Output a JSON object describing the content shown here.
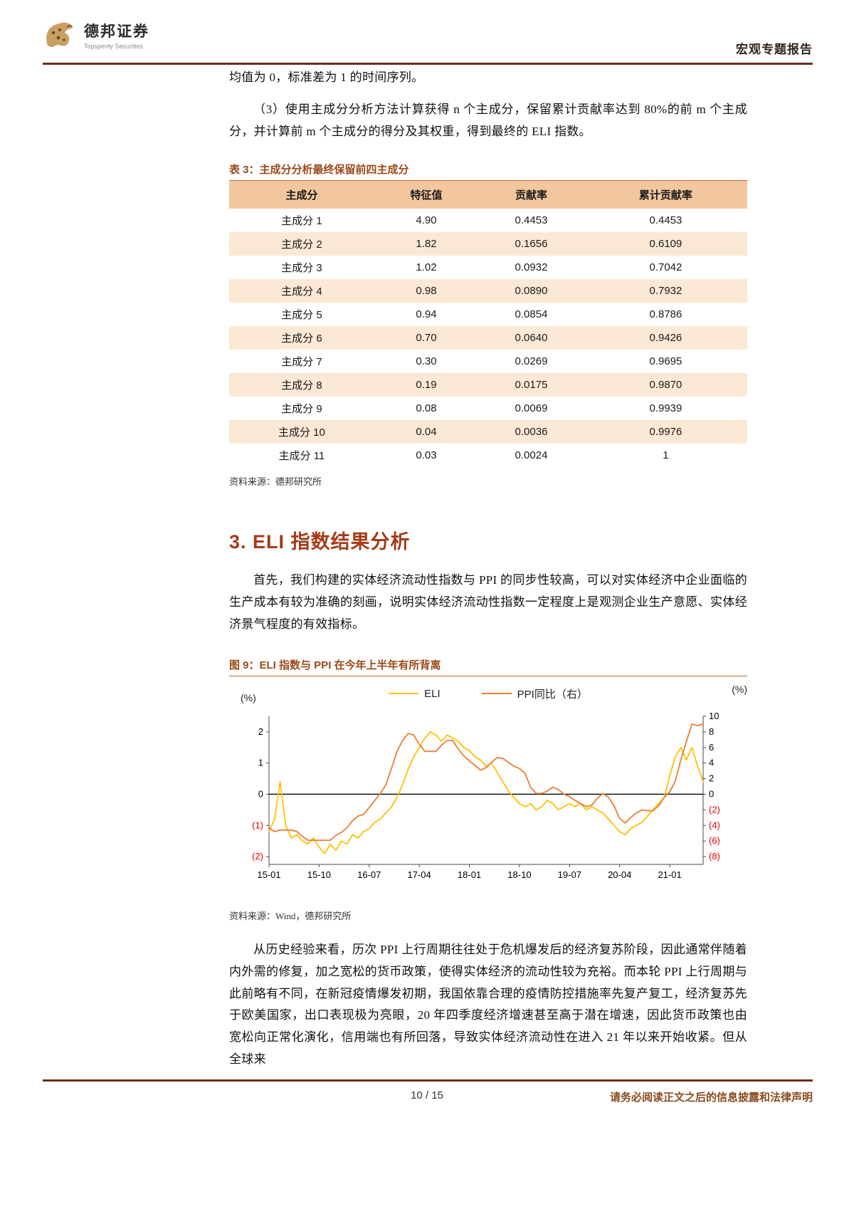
{
  "header": {
    "logo_title": "德邦证券",
    "logo_subtitle": "Topsperity Securities",
    "report_type": "宏观专题报告"
  },
  "body": {
    "para1": "均值为 0，标准差为 1 的时间序列。",
    "para2": "（3）使用主成分分析方法计算获得 n 个主成分，保留累计贡献率达到 80%的前 m 个主成分，并计算前 m 个主成分的得分及其权重，得到最终的 ELI 指数。",
    "section_heading": "3. ELI 指数结果分析",
    "para3": "首先，我们构建的实体经济流动性指数与 PPI 的同步性较高，可以对实体经济中企业面临的生产成本有较为准确的刻画，说明实体经济流动性指数一定程度上是观测企业生产意愿、实体经济景气程度的有效指标。",
    "para4": "从历史经验来看，历次 PPI 上行周期往往处于危机爆发后的经济复苏阶段，因此通常伴随着内外需的修复，加之宽松的货币政策，使得实体经济的流动性较为充裕。而本轮 PPI 上行周期与此前略有不同，在新冠疫情爆发初期，我国依靠合理的疫情防控措施率先复产复工，经济复苏先于欧美国家，出口表现极为亮眼，20 年四季度经济增速甚至高于潜在增速，因此货币政策也由宽松向正常化演化，信用端也有所回落，导致实体经济流动性在进入 21 年以来开始收紧。但从全球来"
  },
  "table": {
    "title": "表 3：主成分分析最终保留前四主成分",
    "headers": [
      "主成分",
      "特征值",
      "贡献率",
      "累计贡献率"
    ],
    "rows": [
      [
        "主成分 1",
        "4.90",
        "0.4453",
        "0.4453"
      ],
      [
        "主成分 2",
        "1.82",
        "0.1656",
        "0.6109"
      ],
      [
        "主成分 3",
        "1.02",
        "0.0932",
        "0.7042"
      ],
      [
        "主成分 4",
        "0.98",
        "0.0890",
        "0.7932"
      ],
      [
        "主成分 5",
        "0.94",
        "0.0854",
        "0.8786"
      ],
      [
        "主成分 6",
        "0.70",
        "0.0640",
        "0.9426"
      ],
      [
        "主成分 7",
        "0.30",
        "0.0269",
        "0.9695"
      ],
      [
        "主成分 8",
        "0.19",
        "0.0175",
        "0.9870"
      ],
      [
        "主成分 9",
        "0.08",
        "0.0069",
        "0.9939"
      ],
      [
        "主成分 10",
        "0.04",
        "0.0036",
        "0.9976"
      ],
      [
        "主成分 11",
        "0.03",
        "0.0024",
        "1"
      ]
    ],
    "source": "资料来源：德邦研究所"
  },
  "figure": {
    "title": "图 9：ELI 指数与 PPI 在今年上半年有所背离",
    "left_unit": "(%)",
    "right_unit": "(%)",
    "source": "资料来源：Wind，德邦研究所"
  },
  "chart_data": {
    "type": "line",
    "title": "图 9：ELI 指数与 PPI 在今年上半年有所背离",
    "grid": false,
    "legend_position": "top",
    "x_start": "2015-01",
    "x_end": "2021-07",
    "x_ticks": [
      {
        "index": 0,
        "label": "15-01"
      },
      {
        "index": 9,
        "label": "15-10"
      },
      {
        "index": 18,
        "label": "16-07"
      },
      {
        "index": 27,
        "label": "17-04"
      },
      {
        "index": 36,
        "label": "18-01"
      },
      {
        "index": 45,
        "label": "18-10"
      },
      {
        "index": 54,
        "label": "19-07"
      },
      {
        "index": 63,
        "label": "20-04"
      },
      {
        "index": 72,
        "label": "21-01"
      }
    ],
    "ylim_left": [
      -2.25,
      2.5
    ],
    "ylim_right": [
      -9,
      10
    ],
    "yticks_left": [
      {
        "value": 2,
        "label": "2"
      },
      {
        "value": 1,
        "label": "1"
      },
      {
        "value": 0,
        "label": "0"
      },
      {
        "value": -1,
        "label": "(1)"
      },
      {
        "value": -2,
        "label": "(2)"
      }
    ],
    "yticks_right": [
      {
        "value": 10,
        "label": "10"
      },
      {
        "value": 8,
        "label": "8"
      },
      {
        "value": 6,
        "label": "6"
      },
      {
        "value": 4,
        "label": "4"
      },
      {
        "value": 2,
        "label": "2"
      },
      {
        "value": 0,
        "label": "0"
      },
      {
        "value": -2,
        "label": "(2)"
      },
      {
        "value": -4,
        "label": "(4)"
      },
      {
        "value": -6,
        "label": "(6)"
      },
      {
        "value": -8,
        "label": "(8)"
      }
    ],
    "negative_tick_color": "#E60000",
    "series": [
      {
        "name": "ELI",
        "axis": "left",
        "color": "#FFC000",
        "values": [
          -1.2,
          -0.8,
          0.4,
          -1.0,
          -1.4,
          -1.3,
          -1.5,
          -1.6,
          -1.4,
          -1.7,
          -1.9,
          -1.6,
          -1.8,
          -1.5,
          -1.6,
          -1.3,
          -1.4,
          -1.2,
          -1.1,
          -0.9,
          -0.8,
          -0.6,
          -0.4,
          -0.1,
          0.3,
          0.8,
          1.2,
          1.5,
          1.8,
          2.0,
          1.9,
          1.7,
          1.9,
          1.8,
          1.7,
          1.5,
          1.4,
          1.2,
          1.1,
          0.9,
          1.0,
          0.7,
          0.4,
          0.1,
          -0.1,
          -0.3,
          -0.4,
          -0.3,
          -0.5,
          -0.4,
          -0.2,
          -0.3,
          -0.5,
          -0.4,
          -0.3,
          -0.4,
          -0.3,
          -0.5,
          -0.4,
          -0.5,
          -0.6,
          -0.8,
          -1.0,
          -1.2,
          -1.3,
          -1.1,
          -1.0,
          -0.9,
          -0.7,
          -0.5,
          -0.3,
          -0.1,
          0.6,
          1.2,
          1.5,
          1.1,
          1.5,
          0.9,
          0.4
        ]
      },
      {
        "name": "PPI同比（右）",
        "axis": "right",
        "color": "#ED7D31",
        "values": [
          -4.3,
          -4.8,
          -4.6,
          -4.6,
          -4.6,
          -4.8,
          -5.4,
          -5.9,
          -5.9,
          -5.9,
          -5.9,
          -5.9,
          -5.3,
          -4.9,
          -4.3,
          -3.4,
          -2.8,
          -2.6,
          -1.7,
          -0.8,
          0.1,
          1.2,
          3.3,
          5.5,
          6.9,
          7.8,
          7.6,
          6.4,
          5.5,
          5.5,
          5.5,
          6.3,
          6.9,
          6.9,
          5.8,
          4.9,
          4.3,
          3.7,
          3.1,
          3.4,
          4.1,
          4.7,
          4.6,
          4.1,
          3.6,
          3.3,
          2.7,
          0.9,
          0.1,
          0.1,
          0.4,
          0.9,
          0.6,
          0.0,
          -0.3,
          -0.8,
          -1.2,
          -1.6,
          -1.4,
          -0.5,
          0.1,
          -0.4,
          -1.5,
          -3.1,
          -3.7,
          -3.0,
          -2.4,
          -2.0,
          -2.1,
          -2.1,
          -1.5,
          -0.4,
          0.3,
          1.7,
          4.4,
          6.8,
          9.0,
          8.8,
          9.0
        ]
      }
    ]
  },
  "footer": {
    "page": "10 / 15",
    "disclaimer": "请务必阅读正文之后的信息披露和法律声明"
  },
  "colors": {
    "rule": "#6C2E1C",
    "caption": "#99491A",
    "section_heading": "#A43A18",
    "table_header_bg": "#F2C79E",
    "table_alt_row_bg": "#FBE8D5",
    "eli_line": "#FFC000",
    "ppi_line": "#ED7D31",
    "negative_axis": "#E60000",
    "disclaimer": "#8A4A1E"
  }
}
